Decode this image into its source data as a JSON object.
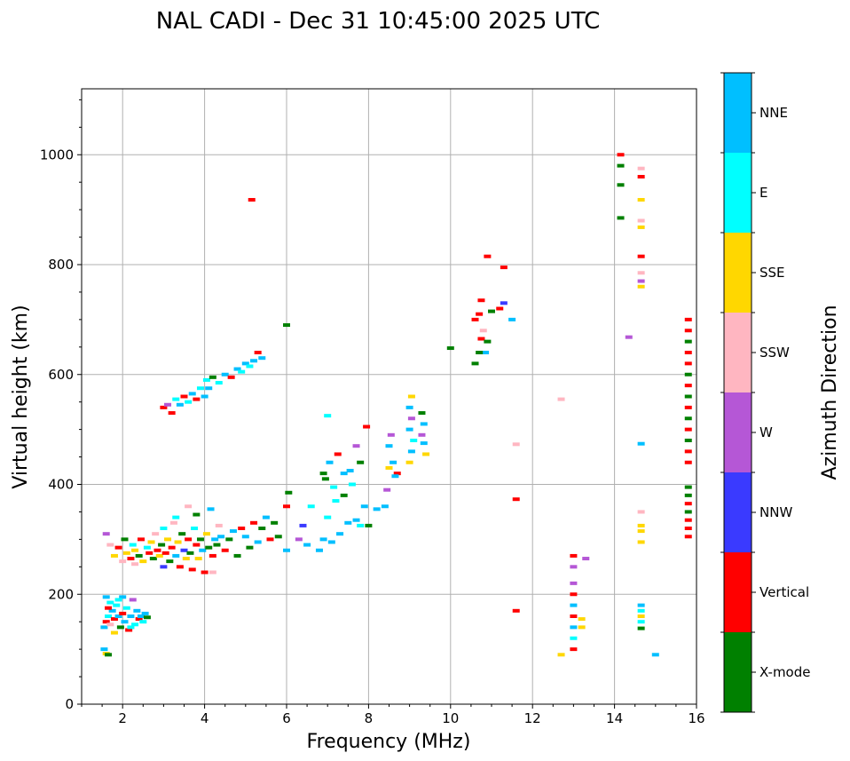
{
  "chart_data": {
    "type": "scatter",
    "title": "NAL CADI - Dec 31 10:45:00 2025 UTC",
    "xlabel": "Frequency (MHz)",
    "ylabel": "Virtual height (km)",
    "xlim": [
      1,
      16
    ],
    "ylim": [
      0,
      1120
    ],
    "xticks": [
      2,
      4,
      6,
      8,
      10,
      12,
      14,
      16
    ],
    "yticks": [
      0,
      200,
      400,
      600,
      800,
      1000
    ],
    "grid": true,
    "colorbar": {
      "label": "Azimuth Direction",
      "categories": [
        {
          "name": "X-mode",
          "color": "#008000"
        },
        {
          "name": "Vertical",
          "color": "#ff0000"
        },
        {
          "name": "NNW",
          "color": "#3a3aff"
        },
        {
          "name": "W",
          "color": "#b557d6"
        },
        {
          "name": "SSW",
          "color": "#ffb6c1"
        },
        {
          "name": "SSE",
          "color": "#ffd700"
        },
        {
          "name": "E",
          "color": "#00ffff"
        },
        {
          "name": "NNE",
          "color": "#00bfff"
        }
      ]
    },
    "points": [
      [
        1.55,
        100,
        "NNE"
      ],
      [
        1.6,
        92,
        "SSE"
      ],
      [
        1.65,
        90,
        "X-mode"
      ],
      [
        1.55,
        140,
        "NNE"
      ],
      [
        1.6,
        150,
        "Vertical"
      ],
      [
        1.65,
        160,
        "E"
      ],
      [
        1.7,
        145,
        "SSW"
      ],
      [
        1.75,
        170,
        "NNE"
      ],
      [
        1.8,
        155,
        "Vertical"
      ],
      [
        1.85,
        180,
        "E"
      ],
      [
        1.9,
        160,
        "NNE"
      ],
      [
        1.95,
        140,
        "X-mode"
      ],
      [
        2.0,
        165,
        "Vertical"
      ],
      [
        2.05,
        150,
        "NNE"
      ],
      [
        2.1,
        175,
        "E"
      ],
      [
        2.15,
        135,
        "Vertical"
      ],
      [
        2.2,
        160,
        "NNE"
      ],
      [
        2.25,
        190,
        "W"
      ],
      [
        2.3,
        145,
        "E"
      ],
      [
        2.35,
        170,
        "NNE"
      ],
      [
        2.4,
        155,
        "Vertical"
      ],
      [
        2.45,
        160,
        "NNE"
      ],
      [
        2.5,
        150,
        "E"
      ],
      [
        2.55,
        165,
        "NNE"
      ],
      [
        2.6,
        158,
        "X-mode"
      ],
      [
        1.6,
        195,
        "NNE"
      ],
      [
        1.7,
        185,
        "E"
      ],
      [
        1.8,
        130,
        "SSE"
      ],
      [
        2.0,
        195,
        "NNE"
      ],
      [
        2.2,
        140,
        "E"
      ],
      [
        1.65,
        175,
        "Vertical"
      ],
      [
        1.9,
        190,
        "E"
      ],
      [
        1.6,
        310,
        "W"
      ],
      [
        1.7,
        290,
        "SSW"
      ],
      [
        1.8,
        270,
        "SSE"
      ],
      [
        1.9,
        285,
        "Vertical"
      ],
      [
        2.0,
        260,
        "SSW"
      ],
      [
        2.05,
        300,
        "X-mode"
      ],
      [
        2.1,
        275,
        "SSE"
      ],
      [
        2.2,
        265,
        "Vertical"
      ],
      [
        2.25,
        290,
        "E"
      ],
      [
        2.3,
        280,
        "SSE"
      ],
      [
        2.4,
        270,
        "X-mode"
      ],
      [
        2.45,
        300,
        "Vertical"
      ],
      [
        2.5,
        260,
        "SSE"
      ],
      [
        2.6,
        285,
        "E"
      ],
      [
        2.65,
        275,
        "Vertical"
      ],
      [
        2.7,
        295,
        "SSE"
      ],
      [
        2.75,
        265,
        "X-mode"
      ],
      [
        2.8,
        310,
        "SSW"
      ],
      [
        2.85,
        280,
        "Vertical"
      ],
      [
        2.9,
        270,
        "SSE"
      ],
      [
        2.95,
        290,
        "X-mode"
      ],
      [
        3.0,
        250,
        "NNW"
      ],
      [
        3.0,
        320,
        "E"
      ],
      [
        3.05,
        275,
        "Vertical"
      ],
      [
        3.1,
        300,
        "SSE"
      ],
      [
        3.15,
        260,
        "X-mode"
      ],
      [
        3.2,
        285,
        "Vertical"
      ],
      [
        3.25,
        330,
        "SSW"
      ],
      [
        3.3,
        270,
        "NNE"
      ],
      [
        3.35,
        295,
        "SSE"
      ],
      [
        3.4,
        250,
        "Vertical"
      ],
      [
        3.45,
        310,
        "X-mode"
      ],
      [
        3.5,
        280,
        "NNW"
      ],
      [
        3.55,
        265,
        "SSE"
      ],
      [
        3.6,
        300,
        "Vertical"
      ],
      [
        3.65,
        275,
        "X-mode"
      ],
      [
        3.7,
        245,
        "Vertical"
      ],
      [
        3.75,
        320,
        "E"
      ],
      [
        3.8,
        290,
        "Vertical"
      ],
      [
        3.85,
        265,
        "SSE"
      ],
      [
        3.9,
        300,
        "X-mode"
      ],
      [
        3.95,
        280,
        "NNE"
      ],
      [
        4.0,
        240,
        "Vertical"
      ],
      [
        4.05,
        310,
        "SSE"
      ],
      [
        4.1,
        285,
        "X-mode"
      ],
      [
        4.15,
        355,
        "NNE"
      ],
      [
        4.2,
        270,
        "Vertical"
      ],
      [
        4.25,
        300,
        "NNE"
      ],
      [
        4.3,
        290,
        "X-mode"
      ],
      [
        4.35,
        325,
        "SSW"
      ],
      [
        4.4,
        305,
        "NNE"
      ],
      [
        4.5,
        280,
        "Vertical"
      ],
      [
        4.6,
        300,
        "X-mode"
      ],
      [
        4.7,
        315,
        "NNE"
      ],
      [
        4.8,
        270,
        "X-mode"
      ],
      [
        4.9,
        320,
        "Vertical"
      ],
      [
        5.0,
        305,
        "NNE"
      ],
      [
        5.1,
        285,
        "X-mode"
      ],
      [
        5.2,
        330,
        "Vertical"
      ],
      [
        5.3,
        295,
        "NNE"
      ],
      [
        5.4,
        320,
        "X-mode"
      ],
      [
        5.5,
        340,
        "NNE"
      ],
      [
        5.6,
        300,
        "Vertical"
      ],
      [
        5.7,
        330,
        "X-mode"
      ],
      [
        5.8,
        305,
        "X-mode"
      ],
      [
        6.0,
        360,
        "Vertical"
      ],
      [
        6.0,
        280,
        "NNE"
      ],
      [
        6.05,
        385,
        "X-mode"
      ],
      [
        3.6,
        360,
        "SSW"
      ],
      [
        3.3,
        340,
        "E"
      ],
      [
        3.8,
        345,
        "X-mode"
      ],
      [
        4.2,
        240,
        "SSW"
      ],
      [
        2.3,
        255,
        "SSW"
      ],
      [
        3.0,
        540,
        "Vertical"
      ],
      [
        3.1,
        545,
        "W"
      ],
      [
        3.2,
        530,
        "Vertical"
      ],
      [
        3.3,
        555,
        "E"
      ],
      [
        3.4,
        545,
        "NNE"
      ],
      [
        3.5,
        560,
        "Vertical"
      ],
      [
        3.6,
        550,
        "E"
      ],
      [
        3.7,
        565,
        "NNE"
      ],
      [
        3.8,
        555,
        "Vertical"
      ],
      [
        3.9,
        575,
        "E"
      ],
      [
        4.0,
        560,
        "NNE"
      ],
      [
        4.05,
        590,
        "E"
      ],
      [
        4.1,
        575,
        "NNE"
      ],
      [
        4.2,
        595,
        "X-mode"
      ],
      [
        4.35,
        585,
        "E"
      ],
      [
        4.5,
        600,
        "NNE"
      ],
      [
        4.65,
        595,
        "Vertical"
      ],
      [
        4.8,
        610,
        "NNE"
      ],
      [
        4.9,
        605,
        "E"
      ],
      [
        5.0,
        620,
        "NNE"
      ],
      [
        5.1,
        615,
        "E"
      ],
      [
        5.2,
        625,
        "NNE"
      ],
      [
        5.3,
        640,
        "Vertical"
      ],
      [
        5.4,
        630,
        "NNE"
      ],
      [
        5.15,
        918,
        "Vertical"
      ],
      [
        6.4,
        325,
        "NNW"
      ],
      [
        6.3,
        300,
        "W"
      ],
      [
        6.5,
        290,
        "NNE"
      ],
      [
        6.6,
        360,
        "E"
      ],
      [
        6.8,
        280,
        "NNE"
      ],
      [
        6.9,
        300,
        "NNE"
      ],
      [
        7.0,
        340,
        "E"
      ],
      [
        7.1,
        295,
        "NNE"
      ],
      [
        7.2,
        370,
        "E"
      ],
      [
        7.3,
        310,
        "NNE"
      ],
      [
        7.4,
        380,
        "X-mode"
      ],
      [
        7.5,
        330,
        "NNE"
      ],
      [
        7.6,
        400,
        "E"
      ],
      [
        7.7,
        335,
        "NNE"
      ],
      [
        7.8,
        325,
        "E"
      ],
      [
        7.9,
        360,
        "NNE"
      ],
      [
        8.0,
        325,
        "X-mode"
      ],
      [
        6.95,
        410,
        "X-mode"
      ],
      [
        7.05,
        440,
        "NNE"
      ],
      [
        7.15,
        395,
        "E"
      ],
      [
        7.25,
        455,
        "Vertical"
      ],
      [
        7.4,
        420,
        "NNE"
      ],
      [
        7.55,
        425,
        "NNE"
      ],
      [
        7.7,
        470,
        "W"
      ],
      [
        7.8,
        440,
        "X-mode"
      ],
      [
        7.95,
        505,
        "Vertical"
      ],
      [
        7.0,
        525,
        "E"
      ],
      [
        6.9,
        420,
        "X-mode"
      ],
      [
        6.0,
        690,
        "X-mode"
      ],
      [
        8.2,
        355,
        "NNE"
      ],
      [
        8.4,
        360,
        "NNE"
      ],
      [
        8.45,
        390,
        "W"
      ],
      [
        8.5,
        430,
        "SSE"
      ],
      [
        8.6,
        440,
        "NNE"
      ],
      [
        8.7,
        420,
        "Vertical"
      ],
      [
        8.5,
        470,
        "NNE"
      ],
      [
        8.55,
        490,
        "W"
      ],
      [
        9.05,
        560,
        "SSE"
      ],
      [
        9.0,
        540,
        "NNE"
      ],
      [
        9.05,
        520,
        "W"
      ],
      [
        9.0,
        500,
        "NNE"
      ],
      [
        9.1,
        480,
        "E"
      ],
      [
        9.05,
        460,
        "NNE"
      ],
      [
        9.0,
        440,
        "SSE"
      ],
      [
        9.3,
        530,
        "X-mode"
      ],
      [
        9.35,
        510,
        "NNE"
      ],
      [
        9.3,
        490,
        "W"
      ],
      [
        9.4,
        455,
        "SSE"
      ],
      [
        9.35,
        475,
        "NNE"
      ],
      [
        8.65,
        415,
        "NNE"
      ],
      [
        10.6,
        700,
        "Vertical"
      ],
      [
        10.7,
        710,
        "Vertical"
      ],
      [
        10.75,
        735,
        "Vertical"
      ],
      [
        10.8,
        680,
        "SSW"
      ],
      [
        10.75,
        665,
        "Vertical"
      ],
      [
        10.9,
        660,
        "X-mode"
      ],
      [
        10.85,
        640,
        "NNE"
      ],
      [
        10.6,
        620,
        "X-mode"
      ],
      [
        10.7,
        640,
        "X-mode"
      ],
      [
        10.9,
        815,
        "Vertical"
      ],
      [
        11.2,
        720,
        "Vertical"
      ],
      [
        11.3,
        795,
        "Vertical"
      ],
      [
        11.3,
        730,
        "NNW"
      ],
      [
        11.5,
        700,
        "NNE"
      ],
      [
        10.0,
        648,
        "X-mode"
      ],
      [
        11.0,
        715,
        "X-mode"
      ],
      [
        12.7,
        555,
        "SSW"
      ],
      [
        12.7,
        90,
        "SSE"
      ],
      [
        11.6,
        373,
        "Vertical"
      ],
      [
        11.6,
        170,
        "Vertical"
      ],
      [
        11.6,
        473,
        "SSW"
      ],
      [
        13.0,
        270,
        "Vertical"
      ],
      [
        13.0,
        250,
        "W"
      ],
      [
        13.0,
        220,
        "W"
      ],
      [
        13.0,
        200,
        "Vertical"
      ],
      [
        13.0,
        180,
        "NNE"
      ],
      [
        13.0,
        160,
        "Vertical"
      ],
      [
        13.0,
        140,
        "NNE"
      ],
      [
        13.0,
        120,
        "E"
      ],
      [
        13.0,
        100,
        "Vertical"
      ],
      [
        13.2,
        155,
        "SSE"
      ],
      [
        13.2,
        140,
        "SSE"
      ],
      [
        13.3,
        265,
        "W"
      ],
      [
        14.15,
        1000,
        "Vertical"
      ],
      [
        14.15,
        980,
        "X-mode"
      ],
      [
        14.15,
        945,
        "X-mode"
      ],
      [
        14.15,
        885,
        "X-mode"
      ],
      [
        14.35,
        668,
        "W"
      ],
      [
        14.65,
        975,
        "SSW"
      ],
      [
        14.65,
        960,
        "Vertical"
      ],
      [
        14.65,
        918,
        "SSE"
      ],
      [
        14.65,
        880,
        "SSW"
      ],
      [
        14.65,
        868,
        "SSE"
      ],
      [
        14.65,
        815,
        "Vertical"
      ],
      [
        14.65,
        785,
        "SSW"
      ],
      [
        14.65,
        770,
        "W"
      ],
      [
        14.65,
        760,
        "SSE"
      ],
      [
        14.65,
        474,
        "NNE"
      ],
      [
        14.65,
        350,
        "SSW"
      ],
      [
        14.65,
        325,
        "SSE"
      ],
      [
        14.65,
        315,
        "SSE"
      ],
      [
        14.65,
        295,
        "SSE"
      ],
      [
        14.65,
        180,
        "NNE"
      ],
      [
        14.65,
        170,
        "E"
      ],
      [
        14.65,
        160,
        "SSE"
      ],
      [
        14.65,
        150,
        "E"
      ],
      [
        14.65,
        138,
        "X-mode"
      ],
      [
        15.0,
        90,
        "NNE"
      ],
      [
        15.8,
        700,
        "Vertical"
      ],
      [
        15.8,
        680,
        "Vertical"
      ],
      [
        15.8,
        660,
        "X-mode"
      ],
      [
        15.8,
        640,
        "Vertical"
      ],
      [
        15.8,
        620,
        "Vertical"
      ],
      [
        15.8,
        600,
        "X-mode"
      ],
      [
        15.8,
        580,
        "Vertical"
      ],
      [
        15.8,
        560,
        "X-mode"
      ],
      [
        15.8,
        540,
        "Vertical"
      ],
      [
        15.8,
        520,
        "X-mode"
      ],
      [
        15.8,
        500,
        "Vertical"
      ],
      [
        15.8,
        480,
        "X-mode"
      ],
      [
        15.8,
        460,
        "Vertical"
      ],
      [
        15.8,
        440,
        "Vertical"
      ],
      [
        15.8,
        395,
        "X-mode"
      ],
      [
        15.8,
        380,
        "X-mode"
      ],
      [
        15.8,
        365,
        "Vertical"
      ],
      [
        15.8,
        350,
        "X-mode"
      ],
      [
        15.8,
        335,
        "Vertical"
      ],
      [
        15.8,
        320,
        "Vertical"
      ],
      [
        15.8,
        305,
        "Vertical"
      ]
    ]
  }
}
